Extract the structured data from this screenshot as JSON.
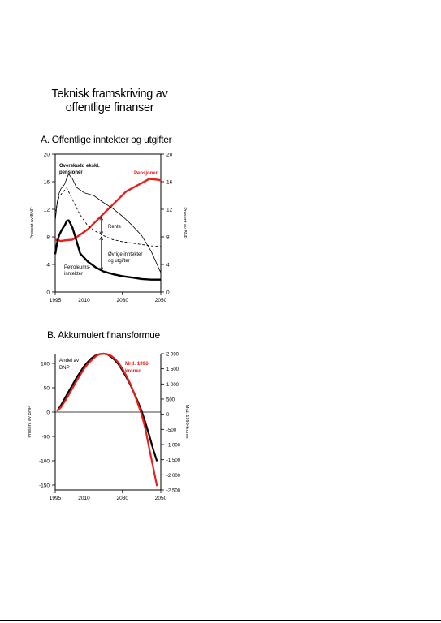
{
  "page": {
    "title_line1": "Teknisk framskriving av",
    "title_line2": "offentlige finanser"
  },
  "chart_data": [
    {
      "type": "line",
      "title": "A. Offentlige inntekter og utgifter",
      "ylabel_left": "Prosent av BNP",
      "ylabel_right": "Prosent av BNP",
      "xlim": [
        1995,
        2050
      ],
      "ylim": [
        0,
        20
      ],
      "x_ticks": [
        1995,
        2010,
        2030,
        2050
      ],
      "y_ticks": [
        0,
        4,
        8,
        12,
        16,
        20
      ],
      "annotations": {
        "overskudd": "Overskudd ekskl. pensjoner",
        "pensjoner": "Pensjoner",
        "rente": "Rente",
        "ovrige_line1": "Øvrige inntekter",
        "ovrige_line2": "og utgifter",
        "petro_line1": "Petroleums-",
        "petro_line2": "inntekter"
      },
      "series": [
        {
          "name": "Pensjoner",
          "color": "#e8201c",
          "style": "solid-thick",
          "x": [
            1995,
            1998,
            2000,
            2004,
            2008,
            2012,
            2016,
            2020,
            2024,
            2028,
            2032,
            2036,
            2040,
            2044,
            2048,
            2050
          ],
          "y": [
            7.6,
            7.4,
            7.5,
            7.6,
            8.3,
            9.1,
            10.2,
            11.3,
            12.4,
            13.5,
            14.6,
            15.2,
            15.8,
            16.4,
            16.3,
            16.2
          ]
        },
        {
          "name": "Overskudd ekskl. pensjoner",
          "color": "#000000",
          "style": "solid-thin",
          "x": [
            1995,
            1996,
            1997,
            1998,
            1999,
            2000,
            2001,
            2002,
            2004,
            2006,
            2010,
            2015,
            2020,
            2025,
            2030,
            2035,
            2040,
            2045,
            2050
          ],
          "y": [
            10.3,
            13.0,
            14.3,
            15.0,
            15.3,
            15.7,
            16.5,
            17.1,
            16.4,
            15.2,
            14.4,
            14.0,
            13.0,
            12.1,
            11.0,
            9.7,
            8.2,
            5.9,
            2.8
          ]
        },
        {
          "name": "Dashed",
          "color": "#000000",
          "style": "dashed",
          "x": [
            1995,
            1997,
            1999,
            2001,
            2003,
            2005,
            2008,
            2012,
            2016,
            2020,
            2025,
            2030,
            2035,
            2040,
            2045,
            2050
          ],
          "y": [
            11.6,
            13.8,
            14.5,
            15.1,
            14.0,
            12.8,
            11.2,
            9.6,
            8.8,
            8.2,
            7.6,
            7.3,
            7.1,
            6.9,
            6.7,
            6.6
          ]
        },
        {
          "name": "Petroleumsinntekter",
          "color": "#000000",
          "style": "solid-thick",
          "x": [
            1995,
            1996,
            1997,
            1998,
            1999,
            2000,
            2001,
            2002,
            2003,
            2004,
            2006,
            2008,
            2012,
            2016,
            2020,
            2025,
            2030,
            2035,
            2040,
            2045,
            2050
          ],
          "y": [
            5.5,
            7.2,
            8.2,
            8.8,
            9.3,
            9.7,
            10.3,
            10.4,
            9.9,
            9.3,
            7.5,
            5.6,
            4.4,
            3.6,
            3.0,
            2.6,
            2.3,
            2.1,
            1.9,
            1.8,
            1.8
          ]
        }
      ]
    },
    {
      "type": "line",
      "title": "B. Akkumulert finansformue",
      "ylabel_left": "Prosent av BNP",
      "ylabel_right": "Mrd. 1996-kroner",
      "xlim": [
        1995,
        2050
      ],
      "ylim_left": [
        -160,
        120
      ],
      "ylim_right": [
        -2500,
        2000
      ],
      "x_ticks": [
        1995,
        2010,
        2030,
        2050
      ],
      "y_ticks_left": [
        -150,
        -100,
        -50,
        0,
        50,
        100
      ],
      "y_ticks_right": [
        "2 000",
        "1 500",
        "1 000",
        "500",
        "0",
        "-500",
        "-1 000",
        "-1 500",
        "-2 000",
        "-2 500"
      ],
      "annotations": {
        "andel_line1": "Andel av",
        "andel_line2": "BNP",
        "mrd_line1": "Mrd. 1996-",
        "mrd_line2": "kroner"
      },
      "series": [
        {
          "name": "Andel av BNP",
          "color": "#000000",
          "x": [
            1996,
            1998,
            2000,
            2002,
            2004,
            2006,
            2008,
            2010,
            2012,
            2014,
            2016,
            2018,
            2020,
            2022,
            2024,
            2026,
            2028,
            2030,
            2032,
            2034,
            2036,
            2038,
            2040,
            2042,
            2044,
            2046,
            2048
          ],
          "y": [
            2,
            14,
            28,
            42,
            56,
            70,
            82,
            94,
            103,
            111,
            116,
            119,
            120,
            119,
            114,
            107,
            98,
            86,
            72,
            57,
            40,
            22,
            2,
            -22,
            -48,
            -76,
            -101
          ]
        },
        {
          "name": "Mrd. 1996-kroner",
          "color": "#e8201c",
          "x": [
            1996,
            1998,
            2000,
            2002,
            2004,
            2006,
            2008,
            2010,
            2012,
            2014,
            2016,
            2018,
            2020,
            2022,
            2024,
            2026,
            2028,
            2030,
            2032,
            2034,
            2036,
            2038,
            2040,
            2042,
            2044,
            2046,
            2048
          ],
          "y": [
            2,
            10,
            22,
            35,
            49,
            63,
            76,
            89,
            99,
            107,
            114,
            119,
            120,
            119,
            116,
            110,
            101,
            89,
            75,
            59,
            40,
            18,
            -5,
            -35,
            -75,
            -113,
            -152
          ]
        }
      ]
    }
  ]
}
